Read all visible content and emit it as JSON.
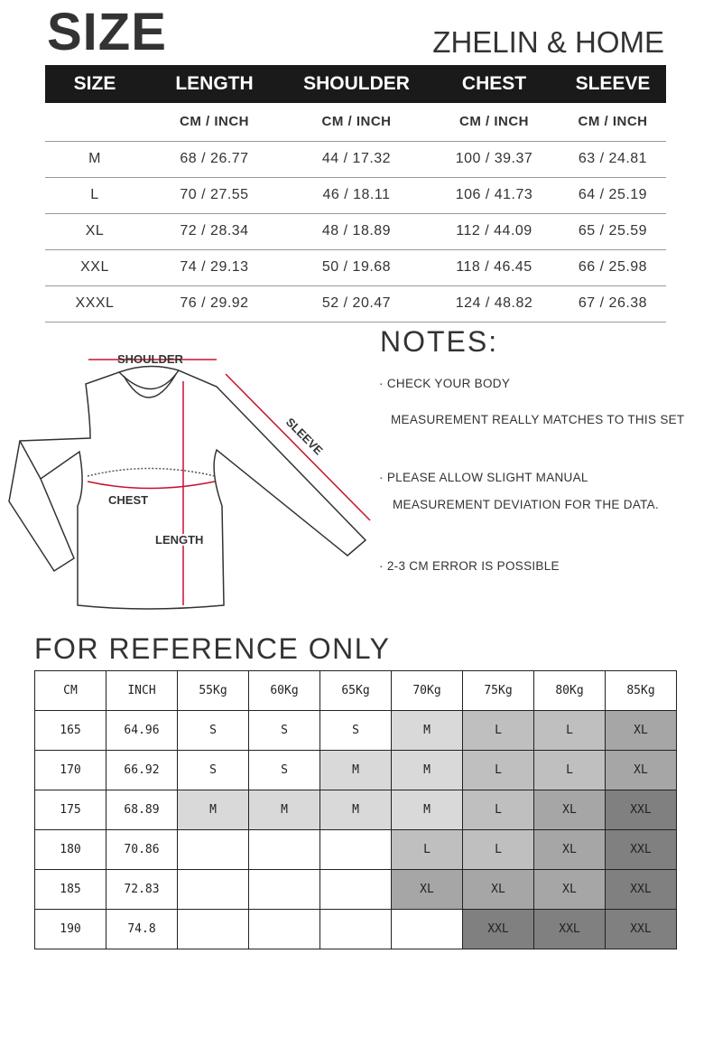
{
  "header": {
    "title": "SIZE",
    "brand": "ZHELIN & HOME"
  },
  "size_table": {
    "headers": [
      "SIZE",
      "LENGTH",
      "SHOULDER",
      "CHEST",
      "SLEEVE"
    ],
    "units": [
      "",
      "CM / INCH",
      "CM / INCH",
      "CM / INCH",
      "CM / INCH"
    ],
    "rows": [
      [
        "M",
        "68 / 26.77",
        "44 / 17.32",
        "100 / 39.37",
        "63 / 24.81"
      ],
      [
        "L",
        "70 / 27.55",
        "46 / 18.11",
        "106 / 41.73",
        "64 / 25.19"
      ],
      [
        "XL",
        "72 / 28.34",
        "48 / 18.89",
        "112 / 44.09",
        "65 / 25.59"
      ],
      [
        "XXL",
        "74 / 29.13",
        "50 / 19.68",
        "118 / 46.45",
        "66 / 25.98"
      ],
      [
        "XXXL",
        "76 / 29.92",
        "52 / 20.47",
        "124 / 48.82",
        "67 / 26.38"
      ]
    ]
  },
  "diagram": {
    "shoulder": "SHOULDER",
    "sleeve": "SLEEVE",
    "chest": "CHEST",
    "length": "LENGTH",
    "arrow_color": "#c8102e"
  },
  "notes": {
    "title": "NOTES:",
    "lines": [
      "·  CHECK YOUR BODY",
      "MEASUREMENT REALLY MATCHES TO THIS SET",
      "·  PLEASE ALLOW SLIGHT MANUAL",
      "MEASUREMENT DEVIATION FOR THE DATA.",
      "· 2-3 CM ERROR IS POSSIBLE"
    ]
  },
  "reference": {
    "title": "FOR REFERENCE ONLY",
    "headers": [
      "CM",
      "INCH",
      "55Kg",
      "60Kg",
      "65Kg",
      "70Kg",
      "75Kg",
      "80Kg",
      "85Kg"
    ],
    "rows": [
      [
        "165",
        "64.96",
        "S",
        "S",
        "S",
        "M",
        "L",
        "L",
        "XL"
      ],
      [
        "170",
        "66.92",
        "S",
        "S",
        "M",
        "M",
        "L",
        "L",
        "XL"
      ],
      [
        "175",
        "68.89",
        "M",
        "M",
        "M",
        "M",
        "L",
        "XL",
        "XXL"
      ],
      [
        "180",
        "70.86",
        "",
        "",
        "",
        "L",
        "L",
        "XL",
        "XXL"
      ],
      [
        "185",
        "72.83",
        "",
        "",
        "",
        "XL",
        "XL",
        "XL",
        "XXL"
      ],
      [
        "190",
        "74.8",
        "",
        "",
        "",
        "",
        "XXL",
        "XXL",
        "XXL"
      ]
    ],
    "shade_colors": {
      "S": "#ffffff",
      "M": "#d9d9d9",
      "L": "#bfbfbf",
      "XL": "#a6a6a6",
      "XXL": "#808080"
    }
  }
}
